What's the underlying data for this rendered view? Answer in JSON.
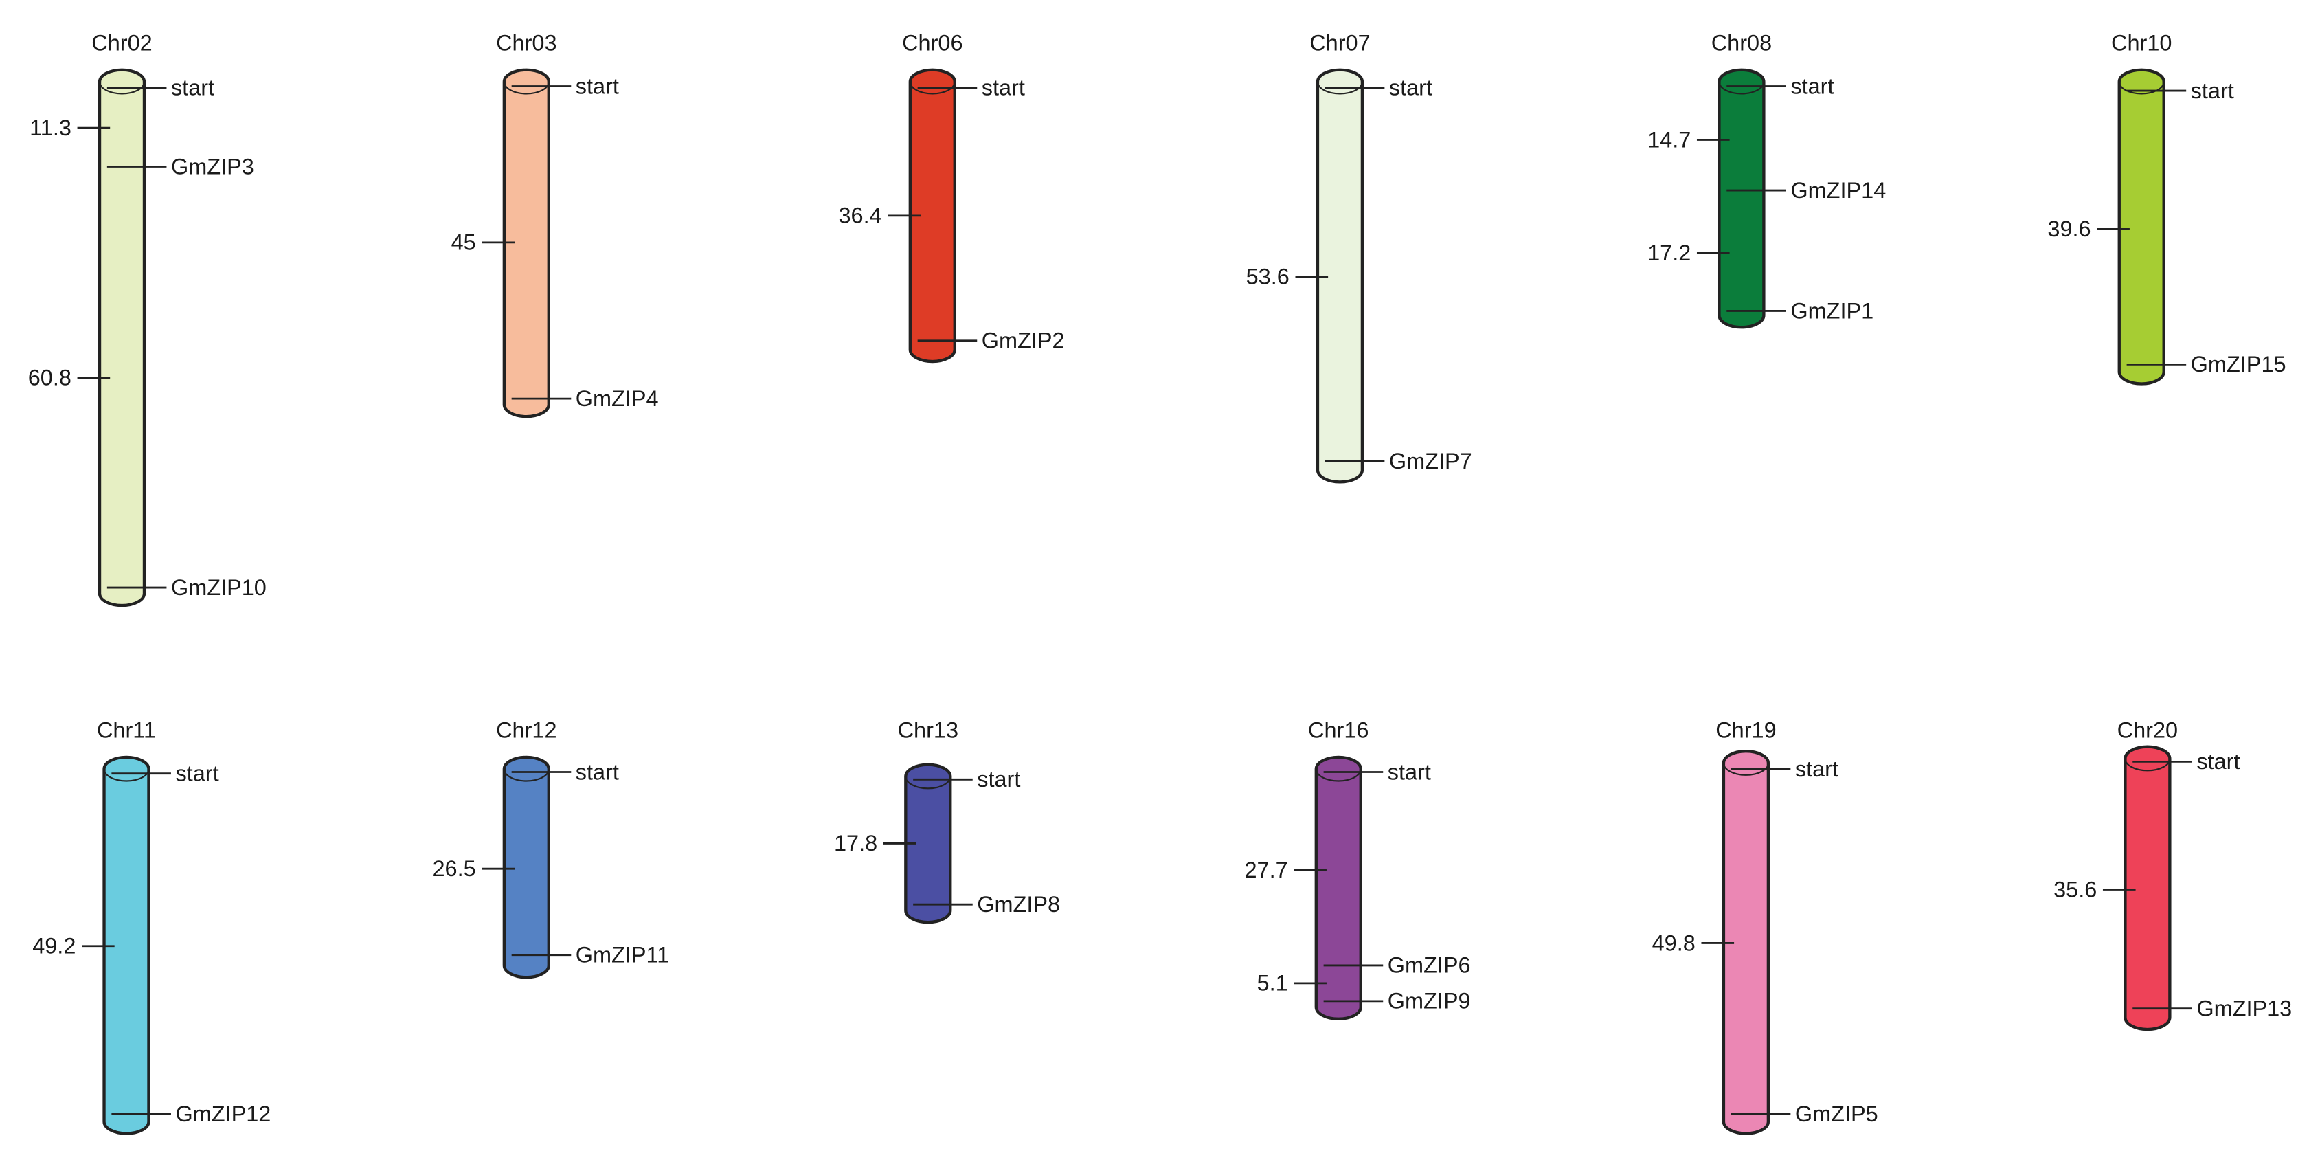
{
  "chromosomes": [
    {
      "name": "Chr02",
      "color": "#e6efc3",
      "left_labels": [
        "11.3",
        "60.8"
      ],
      "right_labels": [
        "start",
        "GmZIP3",
        "GmZIP10"
      ]
    },
    {
      "name": "Chr03",
      "color": "#f7bc9c",
      "left_labels": [
        "45"
      ],
      "right_labels": [
        "start",
        "GmZIP4"
      ]
    },
    {
      "name": "Chr06",
      "color": "#de3c26",
      "left_labels": [
        "36.4"
      ],
      "right_labels": [
        "start",
        "GmZIP2"
      ]
    },
    {
      "name": "Chr07",
      "color": "#eaf3de",
      "left_labels": [
        "53.6"
      ],
      "right_labels": [
        "start",
        "GmZIP7"
      ]
    },
    {
      "name": "Chr08",
      "color": "#0b7d3b",
      "left_labels": [
        "14.7",
        "17.2"
      ],
      "right_labels": [
        "start",
        "GmZIP14",
        "GmZIP1"
      ]
    },
    {
      "name": "Chr10",
      "color": "#a6cd33",
      "left_labels": [
        "39.6"
      ],
      "right_labels": [
        "start",
        "GmZIP15"
      ]
    },
    {
      "name": "Chr11",
      "color": "#6accdf",
      "left_labels": [
        "49.2"
      ],
      "right_labels": [
        "start",
        "GmZIP12"
      ]
    },
    {
      "name": "Chr12",
      "color": "#5582c4",
      "left_labels": [
        "26.5"
      ],
      "right_labels": [
        "start",
        "GmZIP11"
      ]
    },
    {
      "name": "Chr13",
      "color": "#4b4fa3",
      "left_labels": [
        "17.8"
      ],
      "right_labels": [
        "start",
        "GmZIP8"
      ]
    },
    {
      "name": "Chr16",
      "color": "#8c4797",
      "left_labels": [
        "27.7",
        "5.1"
      ],
      "right_labels": [
        "start",
        "GmZIP6",
        "GmZIP9"
      ]
    },
    {
      "name": "Chr19",
      "color": "#eb87b4",
      "left_labels": [
        "49.8"
      ],
      "right_labels": [
        "start",
        "GmZIP5"
      ]
    },
    {
      "name": "Chr20",
      "color": "#ee4258",
      "left_labels": [
        "35.6"
      ],
      "right_labels": [
        "start",
        "GmZIP13"
      ]
    }
  ]
}
